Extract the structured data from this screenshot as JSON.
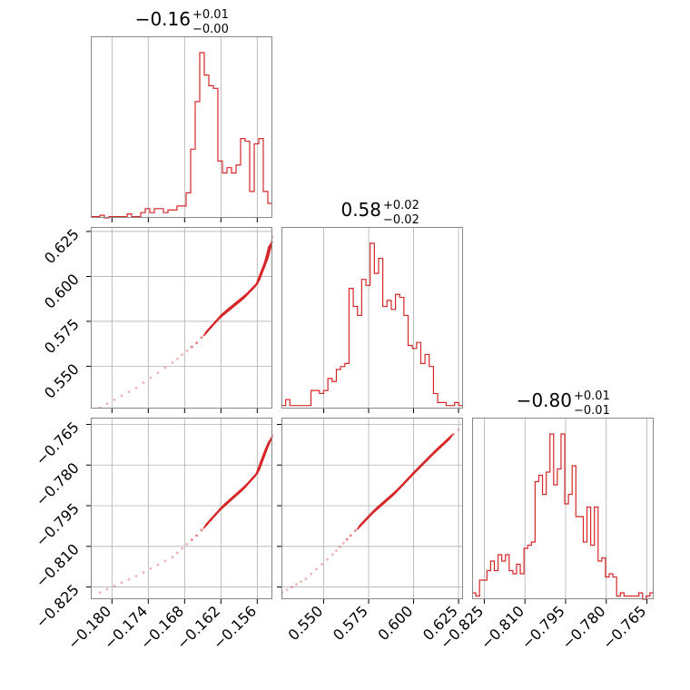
{
  "chart_data": {
    "type": "corner",
    "color": "#d62728",
    "grid": true,
    "parameters": [
      {
        "title": {
          "median": "−0.16",
          "plus": "+0.01",
          "minus": "−0.00"
        },
        "range": [
          -0.1835,
          -0.1535
        ],
        "ticks": [
          -0.18,
          -0.174,
          -0.168,
          -0.162,
          -0.156
        ],
        "tick_labels": [
          "−0.180",
          "−0.174",
          "−0.168",
          "−0.162",
          "−0.156"
        ]
      },
      {
        "title": {
          "median": "0.58",
          "plus": "+0.02",
          "minus": "−0.02"
        },
        "range": [
          0.5265,
          0.6275
        ],
        "ticks": [
          0.55,
          0.575,
          0.6,
          0.625
        ],
        "tick_labels": [
          "0.550",
          "0.575",
          "0.600",
          "0.625"
        ]
      },
      {
        "title": {
          "median": "−0.80",
          "plus": "+0.01",
          "minus": "−0.01"
        },
        "range": [
          -0.8295,
          -0.7625
        ],
        "ticks": [
          -0.825,
          -0.81,
          -0.795,
          -0.78,
          -0.765
        ],
        "tick_labels": [
          "−0.825",
          "−0.810",
          "−0.795",
          "−0.780",
          "−0.765"
        ]
      }
    ],
    "histograms": [
      [
        1,
        1,
        2,
        0,
        1,
        1,
        1,
        1,
        3,
        1,
        1,
        4,
        7,
        4,
        7,
        7,
        4,
        6,
        6,
        9,
        9,
        19,
        52,
        88,
        125,
        108,
        100,
        98,
        43,
        34,
        38,
        34,
        40,
        60,
        58,
        20,
        56,
        60,
        20,
        11
      ],
      [
        1,
        3,
        1,
        1,
        1,
        1,
        1,
        6,
        6,
        5,
        6,
        10,
        9,
        13,
        14,
        15,
        40,
        34,
        31,
        43,
        41,
        55,
        45,
        50,
        34,
        36,
        33,
        38,
        37,
        31,
        21,
        20,
        22,
        15,
        18,
        14,
        5,
        2,
        2,
        1,
        1,
        2,
        1
      ],
      [
        2,
        1,
        6,
        6,
        9,
        12,
        9,
        14,
        12,
        14,
        9,
        8,
        11,
        8,
        16,
        17,
        18,
        37,
        39,
        33,
        40,
        52,
        36,
        41,
        52,
        30,
        33,
        42,
        26,
        26,
        18,
        29,
        17,
        29,
        12,
        13,
        7,
        8,
        7,
        1,
        2,
        1,
        1,
        1,
        1,
        2,
        0,
        1,
        2
      ]
    ],
    "scatter_pairs": [
      {
        "x_param": 0,
        "y_param": 1,
        "trend": [
          [
            -0.182,
            0.527
          ],
          [
            -0.176,
            0.538
          ],
          [
            -0.17,
            0.552
          ],
          [
            -0.166,
            0.563
          ],
          [
            -0.162,
            0.578
          ],
          [
            -0.158,
            0.589
          ],
          [
            -0.156,
            0.596
          ],
          [
            -0.1545,
            0.609
          ],
          [
            -0.1535,
            0.622
          ]
        ]
      },
      {
        "x_param": 0,
        "y_param": 2,
        "trend": [
          [
            -0.182,
            -0.827
          ],
          [
            -0.176,
            -0.821
          ],
          [
            -0.17,
            -0.814
          ],
          [
            -0.166,
            -0.806
          ],
          [
            -0.162,
            -0.796
          ],
          [
            -0.158,
            -0.788
          ],
          [
            -0.156,
            -0.783
          ],
          [
            -0.1545,
            -0.774
          ],
          [
            -0.1535,
            -0.769
          ]
        ]
      },
      {
        "x_param": 1,
        "y_param": 2,
        "trend": [
          [
            0.527,
            -0.827
          ],
          [
            0.54,
            -0.822
          ],
          [
            0.555,
            -0.813
          ],
          [
            0.565,
            -0.806
          ],
          [
            0.578,
            -0.797
          ],
          [
            0.59,
            -0.79
          ],
          [
            0.6,
            -0.783
          ],
          [
            0.612,
            -0.775
          ],
          [
            0.625,
            -0.767
          ]
        ]
      }
    ]
  }
}
